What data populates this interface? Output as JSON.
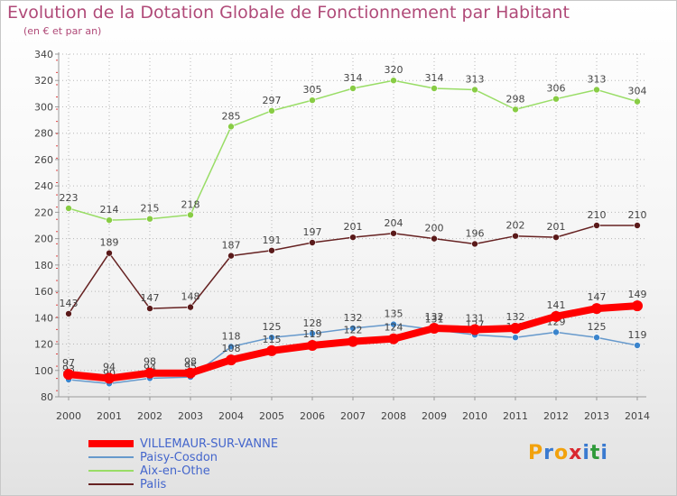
{
  "header": {
    "title": "Evolution de la Dotation Globale de Fonctionnement par Habitant",
    "subtitle": "(en € et par an)"
  },
  "logo": {
    "text": "Proxiti",
    "colors": [
      "#f2a20d",
      "#3a7ad0",
      "#2f9a3a",
      "#d9282f"
    ]
  },
  "colors": {
    "axis": "#999999",
    "grid": "#b7b7b7",
    "label": "#444444"
  },
  "chart_data": {
    "type": "line",
    "title": "Evolution de la Dotation Globale de Fonctionnement par Habitant",
    "ylabel": "(en € et par an)",
    "xlabel": "",
    "categories": [
      "2000",
      "2001",
      "2002",
      "2003",
      "2004",
      "2005",
      "2006",
      "2007",
      "2008",
      "2009",
      "2010",
      "2011",
      "2012",
      "2013",
      "2014"
    ],
    "yticks": [
      "80",
      "100",
      "120",
      "140",
      "160",
      "180",
      "200",
      "220",
      "240",
      "260",
      "280",
      "300",
      "320",
      "340"
    ],
    "ylim": [
      80,
      340
    ],
    "grid": true,
    "legend_position": "bottom-left",
    "series": [
      {
        "name": "Aix-en-Othe",
        "color": "#99dd66",
        "marker_fill": "#88cc44",
        "values": [
          223,
          214,
          215,
          218,
          285,
          297,
          305,
          314,
          320,
          314,
          313,
          298,
          306,
          313,
          304
        ]
      },
      {
        "name": "Palis",
        "color": "#662222",
        "marker_fill": "#5a1a1a",
        "values": [
          143,
          189,
          147,
          148,
          187,
          191,
          197,
          201,
          204,
          200,
          196,
          202,
          201,
          210,
          210
        ]
      },
      {
        "name": "Paisy-Cosdon",
        "color": "#6699cc",
        "marker_fill": "#3a84cc",
        "values": [
          93,
          90,
          94,
          95,
          118,
          125,
          128,
          132,
          135,
          131,
          127,
          125,
          129,
          125,
          119
        ]
      },
      {
        "name": "VILLEMAUR-SUR-VANNE",
        "color": "#ff0000",
        "marker_fill": "#ff0000",
        "values": [
          97,
          94,
          98,
          98,
          108,
          115,
          119,
          122,
          124,
          132,
          131,
          132,
          141,
          147,
          149
        ]
      }
    ]
  },
  "legend": {
    "items": [
      {
        "label": "VILLEMAUR-SUR-VANNE",
        "color": "#ff0000",
        "thickness": 8
      },
      {
        "label": "Paisy-Cosdon",
        "color": "#6699cc",
        "thickness": 2
      },
      {
        "label": "Aix-en-Othe",
        "color": "#99dd66",
        "thickness": 2
      },
      {
        "label": "Palis",
        "color": "#662222",
        "thickness": 2
      }
    ]
  }
}
